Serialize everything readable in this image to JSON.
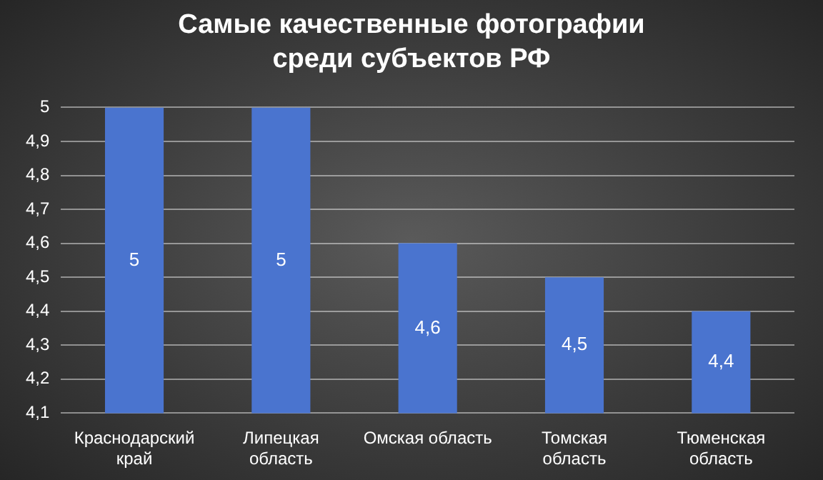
{
  "chart_data": {
    "type": "bar",
    "title": "Самые качественные фотографии среди субъектов РФ",
    "categories": [
      "Краснодарский край",
      "Липецкая область",
      "Омская область",
      "Томская область",
      "Тюменская область"
    ],
    "values": [
      5,
      5,
      4.6,
      4.5,
      4.4
    ],
    "value_labels": [
      "5",
      "5",
      "4,6",
      "4,5",
      "4,4"
    ],
    "color": "#4a74cf",
    "ylim": [
      4.1,
      5
    ],
    "yticks": [
      {
        "value": 4.1,
        "label": "4,1"
      },
      {
        "value": 4.2,
        "label": "4,2"
      },
      {
        "value": 4.3,
        "label": "4,3"
      },
      {
        "value": 4.4,
        "label": "4,4"
      },
      {
        "value": 4.5,
        "label": "4,5"
      },
      {
        "value": 4.6,
        "label": "4,6"
      },
      {
        "value": 4.7,
        "label": "4,7"
      },
      {
        "value": 4.8,
        "label": "4,8"
      },
      {
        "value": 4.9,
        "label": "4,9"
      },
      {
        "value": 5,
        "label": "5"
      }
    ],
    "grid": "y"
  }
}
